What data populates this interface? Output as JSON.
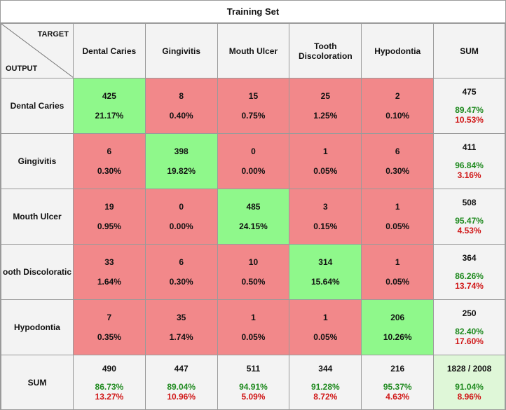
{
  "title": "Training Set",
  "corner": {
    "target": "TARGET",
    "output": "OUTPUT"
  },
  "classes": [
    "Dental Caries",
    "Gingivitis",
    "Mouth Ulcer",
    "Tooth Discoloration",
    "Hypodontia"
  ],
  "row_labels": [
    "Dental Caries",
    "Gingivitis",
    "Mouth Ulcer",
    "ooth Discoloratic",
    "Hypodontia"
  ],
  "sum_label": "SUM",
  "colors": {
    "correct": "#8ff88b",
    "error": "#f2888a",
    "header": "#f3f3f3",
    "total": "#dff7d8",
    "good_text": "#1f8a1f",
    "bad_text": "#d01818"
  },
  "chart_data": {
    "type": "heatmap",
    "title": "Training Set",
    "xlabel": "TARGET",
    "ylabel": "OUTPUT",
    "rows": [
      "Dental Caries",
      "Gingivitis",
      "Mouth Ulcer",
      "Tooth Discoloration",
      "Hypodontia"
    ],
    "cols": [
      "Dental Caries",
      "Gingivitis",
      "Mouth Ulcer",
      "Tooth Discoloration",
      "Hypodontia"
    ],
    "counts": [
      [
        425,
        8,
        15,
        25,
        2
      ],
      [
        6,
        398,
        0,
        1,
        6
      ],
      [
        19,
        0,
        485,
        3,
        1
      ],
      [
        33,
        6,
        10,
        314,
        1
      ],
      [
        7,
        35,
        1,
        1,
        206
      ]
    ],
    "percents": [
      [
        "21.17%",
        "0.40%",
        "0.75%",
        "1.25%",
        "0.10%"
      ],
      [
        "0.30%",
        "19.82%",
        "0.00%",
        "0.05%",
        "0.30%"
      ],
      [
        "0.95%",
        "0.00%",
        "24.15%",
        "0.15%",
        "0.05%"
      ],
      [
        "1.64%",
        "0.30%",
        "0.50%",
        "15.64%",
        "0.05%"
      ],
      [
        "0.35%",
        "1.74%",
        "0.05%",
        "0.05%",
        "10.26%"
      ]
    ],
    "row_sums": [
      {
        "total": "475",
        "correct": "89.47%",
        "error": "10.53%"
      },
      {
        "total": "411",
        "correct": "96.84%",
        "error": "3.16%"
      },
      {
        "total": "508",
        "correct": "95.47%",
        "error": "4.53%"
      },
      {
        "total": "364",
        "correct": "86.26%",
        "error": "13.74%"
      },
      {
        "total": "250",
        "correct": "82.40%",
        "error": "17.60%"
      }
    ],
    "col_sums": [
      {
        "total": "490",
        "correct": "86.73%",
        "error": "13.27%"
      },
      {
        "total": "447",
        "correct": "89.04%",
        "error": "10.96%"
      },
      {
        "total": "511",
        "correct": "94.91%",
        "error": "5.09%"
      },
      {
        "total": "344",
        "correct": "91.28%",
        "error": "8.72%"
      },
      {
        "total": "216",
        "correct": "95.37%",
        "error": "4.63%"
      }
    ],
    "overall": {
      "total": "1828 / 2008",
      "correct": "91.04%",
      "error": "8.96%"
    }
  }
}
